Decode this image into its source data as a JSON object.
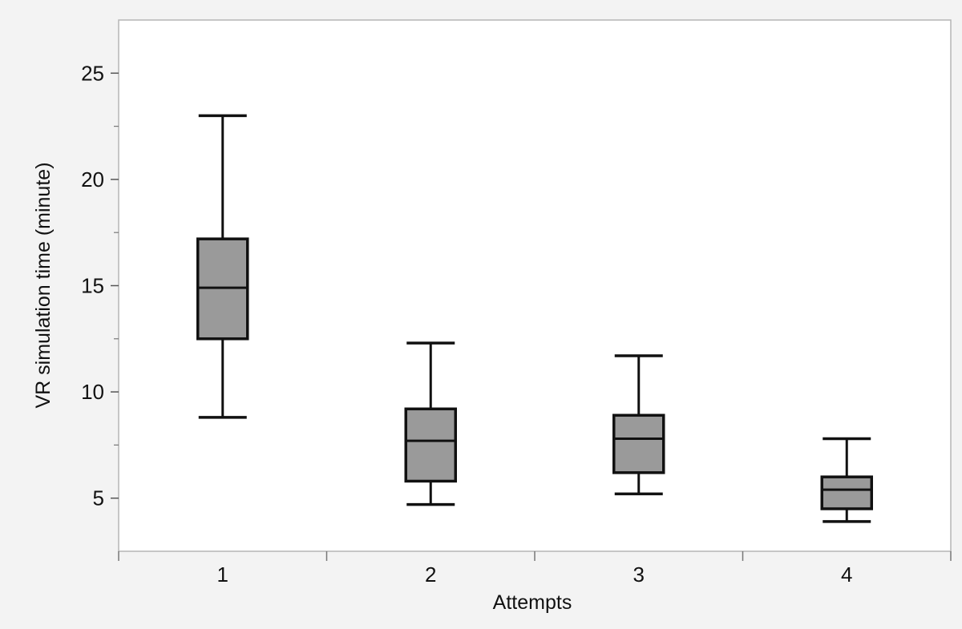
{
  "chart_data": {
    "type": "box",
    "xlabel": "Attempts",
    "ylabel": "VR simulation time (minute)",
    "categories": [
      "1",
      "2",
      "3",
      "4"
    ],
    "y_ticks": [
      5,
      10,
      15,
      20,
      25
    ],
    "ylim": [
      2.5,
      27.5
    ],
    "grid": false,
    "legend": "none",
    "boxes": [
      {
        "category": "1",
        "min": 8.8,
        "q1": 12.5,
        "median": 14.9,
        "q3": 17.2,
        "max": 23.0
      },
      {
        "category": "2",
        "min": 4.7,
        "q1": 5.8,
        "median": 7.7,
        "q3": 9.2,
        "max": 12.3
      },
      {
        "category": "3",
        "min": 5.2,
        "q1": 6.2,
        "median": 7.8,
        "q3": 8.9,
        "max": 11.7
      },
      {
        "category": "4",
        "min": 3.9,
        "q1": 4.5,
        "median": 5.4,
        "q3": 6.0,
        "max": 7.8
      }
    ],
    "colors": {
      "box_fill": "#9a9a9a",
      "stroke": "#111111",
      "plot_background": "#ffffff",
      "frame": "#b5b5b5"
    }
  }
}
